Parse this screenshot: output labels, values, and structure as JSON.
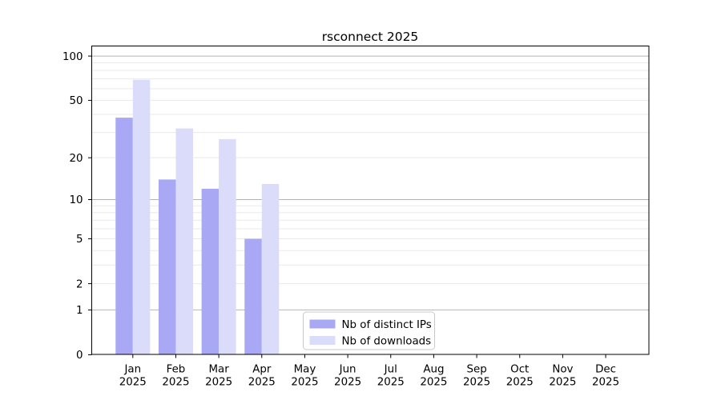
{
  "chart_data": {
    "type": "bar",
    "title": "rsconnect 2025",
    "yscale": "log1p",
    "ylabel": "",
    "xlabel": "",
    "ylim": [
      0,
      118
    ],
    "grid": "horizontal",
    "y_ticks": [
      0,
      1,
      2,
      5,
      10,
      20,
      50,
      100
    ],
    "major_gridlines": [
      1,
      10,
      100
    ],
    "minor_gridlines": [
      2,
      3,
      4,
      5,
      6,
      7,
      8,
      9,
      20,
      30,
      40,
      50,
      60,
      70,
      80,
      90
    ],
    "categories": [
      {
        "label": "Jan 2025",
        "line1": "Jan",
        "line2": "2025"
      },
      {
        "label": "Feb 2025",
        "line1": "Feb",
        "line2": "2025"
      },
      {
        "label": "Mar 2025",
        "line1": "Mar",
        "line2": "2025"
      },
      {
        "label": "Apr 2025",
        "line1": "Apr",
        "line2": "2025"
      },
      {
        "label": "May 2025",
        "line1": "May",
        "line2": "2025"
      },
      {
        "label": "Jun 2025",
        "line1": "Jun",
        "line2": "2025"
      },
      {
        "label": "Jul 2025",
        "line1": "Jul",
        "line2": "2025"
      },
      {
        "label": "Aug 2025",
        "line1": "Aug",
        "line2": "2025"
      },
      {
        "label": "Sep 2025",
        "line1": "Sep",
        "line2": "2025"
      },
      {
        "label": "Oct 2025",
        "line1": "Oct",
        "line2": "2025"
      },
      {
        "label": "Nov 2025",
        "line1": "Nov",
        "line2": "2025"
      },
      {
        "label": "Dec 2025",
        "line1": "Dec",
        "line2": "2025"
      }
    ],
    "series": [
      {
        "name": "Nb of distinct IPs",
        "color": "#a8a8f5",
        "values": [
          38,
          14,
          12,
          5,
          0,
          0,
          0,
          0,
          0,
          0,
          0,
          0
        ]
      },
      {
        "name": "Nb of downloads",
        "color": "#dbdbfa",
        "values": [
          69,
          32,
          27,
          13,
          0,
          0,
          0,
          0,
          0,
          0,
          0,
          0
        ]
      }
    ],
    "legend": {
      "position": "lower center"
    },
    "colors": {
      "major_grid": "#b4b4b4",
      "minor_grid": "#e9e9e9",
      "spine": "#000000",
      "background": "#ffffff"
    }
  }
}
